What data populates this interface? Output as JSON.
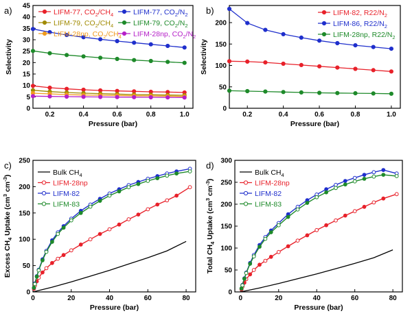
{
  "chart_data": [
    {
      "panel": "a)",
      "type": "line",
      "xlabel": "Pressure (bar)",
      "ylabel": "Selectivity",
      "xlim": [
        0.1,
        1.05
      ],
      "ylim": [
        0,
        45
      ],
      "xticks": [
        0.2,
        0.4,
        0.6,
        0.8,
        1.0
      ],
      "xtick_labels": [
        "0.2",
        "0.4",
        "0.6",
        "0.8",
        "1.0"
      ],
      "yticks": [
        0,
        5,
        10,
        15,
        20,
        25,
        30,
        35,
        40,
        45
      ],
      "ytick_labels": [
        "0",
        "5",
        "10",
        "15",
        "20",
        "25",
        "30",
        "35",
        "40",
        "45"
      ],
      "legend": "top",
      "x": [
        0.1,
        0.2,
        0.3,
        0.4,
        0.5,
        0.6,
        0.7,
        0.8,
        0.9,
        1.0
      ],
      "series": [
        {
          "name": "LIFM-77, CO2/CH4",
          "name_main": "LIFM-77, CO",
          "name_parts": [
            "2",
            "/CH",
            "4"
          ],
          "color": "#e8212a",
          "marker": "circle",
          "values": [
            9.8,
            9.0,
            8.5,
            8.1,
            7.8,
            7.6,
            7.4,
            7.2,
            7.1,
            6.9
          ]
        },
        {
          "name": "LIFM-77, CO2/N2",
          "name_main": "LIFM-77, CO",
          "name_parts": [
            "2",
            "/N",
            "2"
          ],
          "color": "#1f2fcc",
          "marker": "circle",
          "values": [
            34.7,
            33.3,
            32.1,
            31.1,
            30.2,
            29.4,
            28.7,
            28.0,
            27.3,
            26.6
          ]
        },
        {
          "name": "LIFM-79, CO2/CH4",
          "name_main": "LIFM-79, CO",
          "name_parts": [
            "2",
            "/CH",
            "4"
          ],
          "color": "#a08a00",
          "marker": "circle",
          "values": [
            7.9,
            7.3,
            6.9,
            6.6,
            6.4,
            6.2,
            6.0,
            5.9,
            5.8,
            5.7
          ]
        },
        {
          "name": "LIFM-79, CO2/N2",
          "name_main": "LIFM-79, CO",
          "name_parts": [
            "2",
            "/N",
            "2"
          ],
          "color": "#1e8a2a",
          "marker": "circle",
          "values": [
            25.1,
            24.1,
            23.3,
            22.7,
            22.1,
            21.6,
            21.1,
            20.7,
            20.3,
            19.9
          ]
        },
        {
          "name": "LIFM-28np, CO2/CH4",
          "name_main": "LIFM-28np, CO",
          "name_parts": [
            "2",
            "/CH",
            "4"
          ],
          "color": "#f09a1e",
          "marker": "circle",
          "values": [
            6.6,
            6.3,
            6.0,
            5.8,
            5.7,
            5.6,
            5.5,
            5.4,
            5.3,
            5.2
          ]
        },
        {
          "name": "LIFM-28np, CO2/N2",
          "name_main": "LIFM-28np, CO",
          "name_parts": [
            "2",
            "/N",
            "2"
          ],
          "color": "#b520c8",
          "marker": "circle",
          "values": [
            5.3,
            5.2,
            5.1,
            5.0,
            4.95,
            4.9,
            4.85,
            4.8,
            4.75,
            4.7
          ]
        }
      ]
    },
    {
      "panel": "b)",
      "type": "line",
      "xlabel": "Pressure (bar)",
      "ylabel": "Selectivity",
      "xlim": [
        0.1,
        1.05
      ],
      "ylim": [
        0,
        240
      ],
      "xticks": [
        0.2,
        0.4,
        0.6,
        0.8,
        1.0
      ],
      "xtick_labels": [
        "0.2",
        "0.4",
        "0.6",
        "0.8",
        "1.0"
      ],
      "yticks": [
        0,
        50,
        100,
        150,
        200
      ],
      "ytick_labels": [
        "0",
        "50",
        "100",
        "150",
        "200"
      ],
      "legend": "top-right",
      "x": [
        0.1,
        0.2,
        0.3,
        0.4,
        0.5,
        0.6,
        0.7,
        0.8,
        0.9,
        1.0
      ],
      "series": [
        {
          "name": "LIFM-82, R22/N2",
          "name_main": "LIFM-82, R22/N",
          "name_parts": [
            "2"
          ],
          "color": "#e8212a",
          "marker": "circle",
          "values": [
            110,
            109,
            107,
            104,
            101,
            98,
            95,
            92,
            89,
            86
          ]
        },
        {
          "name": "LIFM-86, R22/N2",
          "name_main": "LIFM-86, R22/N",
          "name_parts": [
            "2"
          ],
          "color": "#1f2fcc",
          "marker": "circle",
          "values": [
            232,
            199,
            183,
            173,
            165,
            158,
            152,
            147,
            143,
            139
          ]
        },
        {
          "name": "LIFM-28np, R22/N2",
          "name_main": "LIFM-28np, R22/N",
          "name_parts": [
            "2"
          ],
          "color": "#1e8a2a",
          "marker": "circle",
          "values": [
            41,
            40,
            39,
            38,
            37,
            36,
            35.5,
            35,
            34.5,
            34
          ]
        }
      ]
    },
    {
      "panel": "c)",
      "type": "line",
      "xlabel": "Pressure (bar)",
      "ylabel": "Excess CH4 Uptake (cm3 cm-3)",
      "ylabel_main": "Excess CH",
      "ylabel_sub": "4",
      "ylabel_mid": " Uptake (cm",
      "ylabel_sup1": "3",
      "ylabel_mid2": " cm",
      "ylabel_sup2": "-3",
      "ylabel_end": ")",
      "xlim": [
        0,
        85
      ],
      "ylim": [
        0,
        250
      ],
      "xticks": [
        0,
        20,
        40,
        60,
        80
      ],
      "xtick_labels": [
        "0",
        "20",
        "40",
        "60",
        "80"
      ],
      "yticks": [
        0,
        50,
        100,
        150,
        200,
        250
      ],
      "ytick_labels": [
        "0",
        "50",
        "100",
        "150",
        "200",
        "250"
      ],
      "legend": "top-left",
      "series": [
        {
          "name": "Bulk CH4",
          "name_main": "Bulk CH",
          "name_parts": [
            "4"
          ],
          "color": "#000000",
          "marker": "none",
          "x": [
            0,
            10,
            20,
            30,
            40,
            50,
            60,
            70,
            80
          ],
          "values": [
            0,
            9,
            19,
            30,
            41,
            53,
            65,
            78,
            96
          ]
        },
        {
          "name": "LIFM-28np",
          "name_main": "LIFM-28np",
          "name_parts": [],
          "color": "#e8212a",
          "marker": "circle",
          "x": [
            0.5,
            1,
            2,
            3,
            5,
            7,
            10,
            13,
            16,
            20,
            25,
            30,
            35,
            40,
            45,
            50,
            55,
            60,
            65,
            70,
            75,
            82
          ],
          "values": [
            6,
            12,
            20,
            27,
            37,
            45,
            55,
            63,
            70,
            79,
            90,
            100,
            110,
            119,
            128,
            138,
            147,
            157,
            166,
            174,
            183,
            199
          ]
        },
        {
          "name": "LIFM-82",
          "name_main": "LIFM-82",
          "name_parts": [],
          "color": "#1f2fcc",
          "marker": "circle",
          "x": [
            0.5,
            1,
            2,
            3,
            5,
            7,
            10,
            13,
            16,
            20,
            25,
            30,
            35,
            40,
            45,
            50,
            55,
            60,
            65,
            70,
            75,
            82
          ],
          "values": [
            8,
            16,
            30,
            42,
            62,
            78,
            98,
            113,
            125,
            139,
            154,
            166,
            177,
            187,
            195,
            203,
            209,
            215,
            220,
            225,
            229,
            234
          ]
        },
        {
          "name": "LIFM-83",
          "name_main": "LIFM-83",
          "name_parts": [],
          "color": "#1e8a2a",
          "marker": "circle",
          "x": [
            0.5,
            1,
            2,
            3,
            5,
            7,
            10,
            13,
            16,
            20,
            25,
            30,
            35,
            40,
            45,
            50,
            55,
            60,
            65,
            70,
            75,
            82
          ],
          "values": [
            8,
            15,
            29,
            41,
            60,
            76,
            95,
            110,
            122,
            136,
            150,
            162,
            173,
            183,
            191,
            199,
            205,
            211,
            216,
            221,
            225,
            229
          ]
        }
      ]
    },
    {
      "panel": "d)",
      "type": "line",
      "xlabel": "Pressure (bar)",
      "ylabel": "Total CH4 Uptake (cm3 cm-3)",
      "ylabel_main": "Total CH",
      "ylabel_sub": "4",
      "ylabel_mid": " Uptake (cm",
      "ylabel_sup1": "3",
      "ylabel_mid2": " cm",
      "ylabel_sup2": "-3",
      "ylabel_end": ")",
      "xlim": [
        -3,
        85
      ],
      "ylim": [
        0,
        300
      ],
      "xticks": [
        0,
        20,
        40,
        60,
        80
      ],
      "xtick_labels": [
        "0",
        "20",
        "40",
        "60",
        "80"
      ],
      "yticks": [
        0,
        50,
        100,
        150,
        200,
        250,
        300
      ],
      "ytick_labels": [
        "0",
        "50",
        "100",
        "150",
        "200",
        "250",
        "300"
      ],
      "legend": "top-left",
      "series": [
        {
          "name": "Bulk CH4",
          "name_main": "Bulk CH",
          "name_parts": [
            "4"
          ],
          "color": "#000000",
          "marker": "none",
          "x": [
            0,
            10,
            20,
            30,
            40,
            50,
            60,
            70,
            80
          ],
          "values": [
            0,
            9,
            19,
            30,
            41,
            53,
            65,
            78,
            96
          ]
        },
        {
          "name": "LIFM-28np",
          "name_main": "LIFM-28np",
          "name_parts": [],
          "color": "#e8212a",
          "marker": "circle",
          "x": [
            0.5,
            1,
            2,
            3,
            5,
            7,
            10,
            13,
            16,
            20,
            25,
            30,
            35,
            40,
            45,
            50,
            55,
            60,
            65,
            70,
            75,
            82
          ],
          "values": [
            6,
            12,
            21,
            29,
            40,
            50,
            62,
            71,
            80,
            91,
            104,
            117,
            129,
            141,
            152,
            163,
            174,
            184,
            194,
            204,
            213,
            223
          ]
        },
        {
          "name": "LIFM-82",
          "name_main": "LIFM-82",
          "name_parts": [],
          "color": "#1f2fcc",
          "marker": "circle",
          "x": [
            0.5,
            1,
            2,
            3,
            5,
            7,
            10,
            13,
            16,
            20,
            25,
            30,
            35,
            40,
            45,
            50,
            55,
            60,
            65,
            70,
            75,
            82
          ],
          "values": [
            8,
            16,
            31,
            44,
            66,
            84,
            107,
            125,
            140,
            157,
            177,
            194,
            209,
            222,
            234,
            244,
            253,
            260,
            267,
            273,
            278,
            270
          ]
        },
        {
          "name": "LIFM-83",
          "name_main": "LIFM-83",
          "name_parts": [],
          "color": "#1e8a2a",
          "marker": "circle",
          "x": [
            0.5,
            1,
            2,
            3,
            5,
            7,
            10,
            13,
            16,
            20,
            25,
            30,
            35,
            40,
            45,
            50,
            55,
            60,
            65,
            70,
            75,
            82
          ],
          "values": [
            8,
            15,
            30,
            43,
            64,
            81,
            103,
            121,
            136,
            152,
            171,
            188,
            203,
            216,
            227,
            237,
            245,
            252,
            258,
            263,
            267,
            264
          ]
        }
      ]
    }
  ]
}
